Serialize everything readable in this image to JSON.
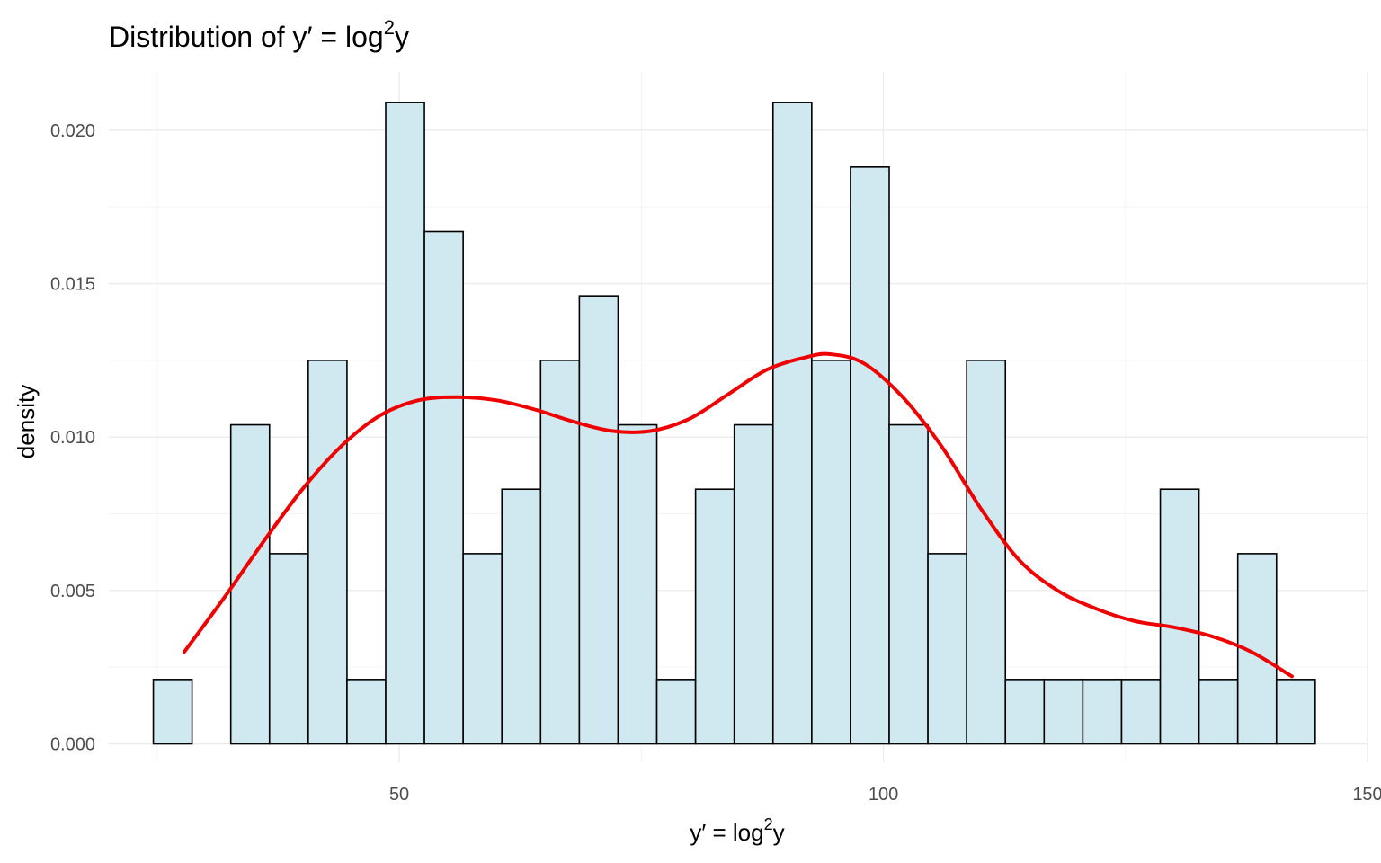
{
  "chart_data": {
    "type": "bar",
    "title": {
      "prefix": "Distribution of ",
      "expr_base": "y′ = log",
      "expr_sup": "2",
      "expr_tail": "y"
    },
    "xlabel": {
      "expr_base": "y′ = log",
      "expr_sup": "2",
      "expr_tail": "y"
    },
    "ylabel": "density",
    "xlim": [
      20,
      150
    ],
    "ylim": [
      -0.0006,
      0.0219
    ],
    "x_ticks": [
      50,
      100,
      150
    ],
    "x_minor_ticks": [
      25,
      75,
      125
    ],
    "x_tick_labels": [
      "50",
      "100",
      "150"
    ],
    "y_ticks": [
      0.0,
      0.005,
      0.01,
      0.015,
      0.02
    ],
    "y_minor_ticks": [
      0.0025,
      0.0075,
      0.0125,
      0.0175
    ],
    "y_tick_labels": [
      "0.000",
      "0.005",
      "0.010",
      "0.015",
      "0.020"
    ],
    "grid": true,
    "bin_width": 4,
    "bins": [
      {
        "x0": 24.6,
        "density": 0.0021
      },
      {
        "x0": 28.6,
        "density": 0.0
      },
      {
        "x0": 32.6,
        "density": 0.0104
      },
      {
        "x0": 36.6,
        "density": 0.0062
      },
      {
        "x0": 40.6,
        "density": 0.0125
      },
      {
        "x0": 44.6,
        "density": 0.0021
      },
      {
        "x0": 48.6,
        "density": 0.0209
      },
      {
        "x0": 52.6,
        "density": 0.0167
      },
      {
        "x0": 56.6,
        "density": 0.0062
      },
      {
        "x0": 60.6,
        "density": 0.0083
      },
      {
        "x0": 64.6,
        "density": 0.0125
      },
      {
        "x0": 68.6,
        "density": 0.0146
      },
      {
        "x0": 72.6,
        "density": 0.0104
      },
      {
        "x0": 76.6,
        "density": 0.0021
      },
      {
        "x0": 80.6,
        "density": 0.0083
      },
      {
        "x0": 84.6,
        "density": 0.0104
      },
      {
        "x0": 88.6,
        "density": 0.0209
      },
      {
        "x0": 92.6,
        "density": 0.0125
      },
      {
        "x0": 96.6,
        "density": 0.0188
      },
      {
        "x0": 100.6,
        "density": 0.0104
      },
      {
        "x0": 104.6,
        "density": 0.0062
      },
      {
        "x0": 108.6,
        "density": 0.0125
      },
      {
        "x0": 112.6,
        "density": 0.0021
      },
      {
        "x0": 116.6,
        "density": 0.0021
      },
      {
        "x0": 120.6,
        "density": 0.0021
      },
      {
        "x0": 124.6,
        "density": 0.0021
      },
      {
        "x0": 128.6,
        "density": 0.0083
      },
      {
        "x0": 132.6,
        "density": 0.0021
      },
      {
        "x0": 136.6,
        "density": 0.0062
      },
      {
        "x0": 140.6,
        "density": 0.0021
      }
    ],
    "density_curve": {
      "x": [
        27.8,
        32,
        36,
        40,
        44,
        48,
        52,
        56,
        60,
        64,
        68,
        72,
        76,
        80,
        84,
        88,
        92,
        94.5,
        98,
        102,
        106,
        110,
        114,
        118,
        122,
        126,
        130,
        134,
        138,
        142.2
      ],
      "y": [
        0.003,
        0.0048,
        0.0066,
        0.0083,
        0.0097,
        0.0107,
        0.0112,
        0.0113,
        0.0112,
        0.0109,
        0.0105,
        0.0102,
        0.0102,
        0.0106,
        0.0114,
        0.0122,
        0.0126,
        0.0127,
        0.0124,
        0.0113,
        0.0097,
        0.0077,
        0.006,
        0.005,
        0.0044,
        0.004,
        0.0038,
        0.0035,
        0.003,
        0.0022
      ],
      "color": "#ee0000"
    },
    "bar_fill": "#d0e8ef",
    "bar_outline": "#000000"
  }
}
